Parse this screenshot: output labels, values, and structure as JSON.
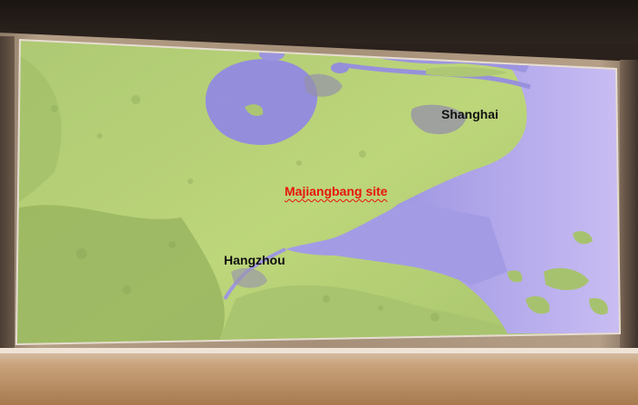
{
  "map": {
    "labels": {
      "shanghai": "Shanghai",
      "majiangbang": "Majiangbang site",
      "hangzhou": "Hangzhou"
    },
    "colors": {
      "land": "#b4cf6c",
      "land_dark": "#8fae52",
      "water": "#958ee0",
      "water_light": "#bcb0f0",
      "urban": "#8f88b8",
      "site_label": "#e8140e"
    }
  }
}
